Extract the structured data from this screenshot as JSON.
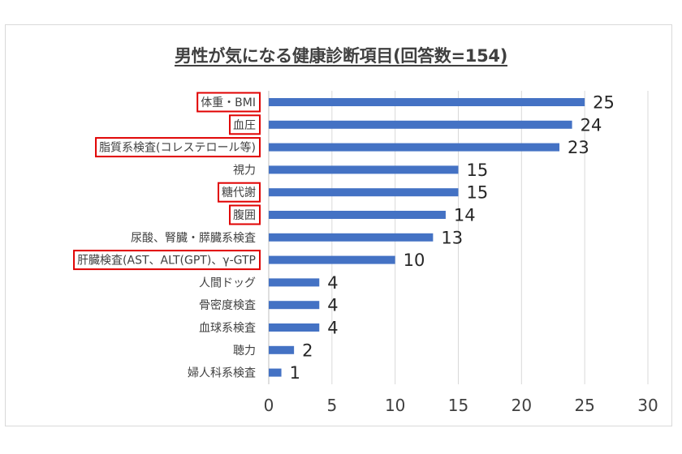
{
  "chart_data": {
    "type": "bar",
    "orientation": "horizontal",
    "title": "男性が気になる健康診断項目(回答数=154)",
    "xlabel": "",
    "ylabel": "",
    "xlim": [
      0,
      30
    ],
    "xticks": [
      0,
      5,
      10,
      15,
      20,
      25,
      30
    ],
    "grid": true,
    "legend": "none",
    "bar_color": "#4472c4",
    "highlight_color": "#e00000",
    "categories": [
      "体重・BMI",
      "血圧",
      "脂質系検査(コレステロール等)",
      "視力",
      "糖代謝",
      "腹囲",
      "尿酸、腎臓・膵臓系検査",
      "肝臓検査(AST、ALT(GPT)、γ-GTP",
      "人間ドッグ",
      "骨密度検査",
      "血球系検査",
      "聴力",
      "婦人科系検査"
    ],
    "values": [
      25,
      24,
      23,
      15,
      15,
      14,
      13,
      10,
      4,
      4,
      4,
      2,
      1
    ],
    "highlighted": [
      true,
      true,
      true,
      false,
      true,
      true,
      false,
      true,
      false,
      false,
      false,
      false,
      false
    ]
  }
}
